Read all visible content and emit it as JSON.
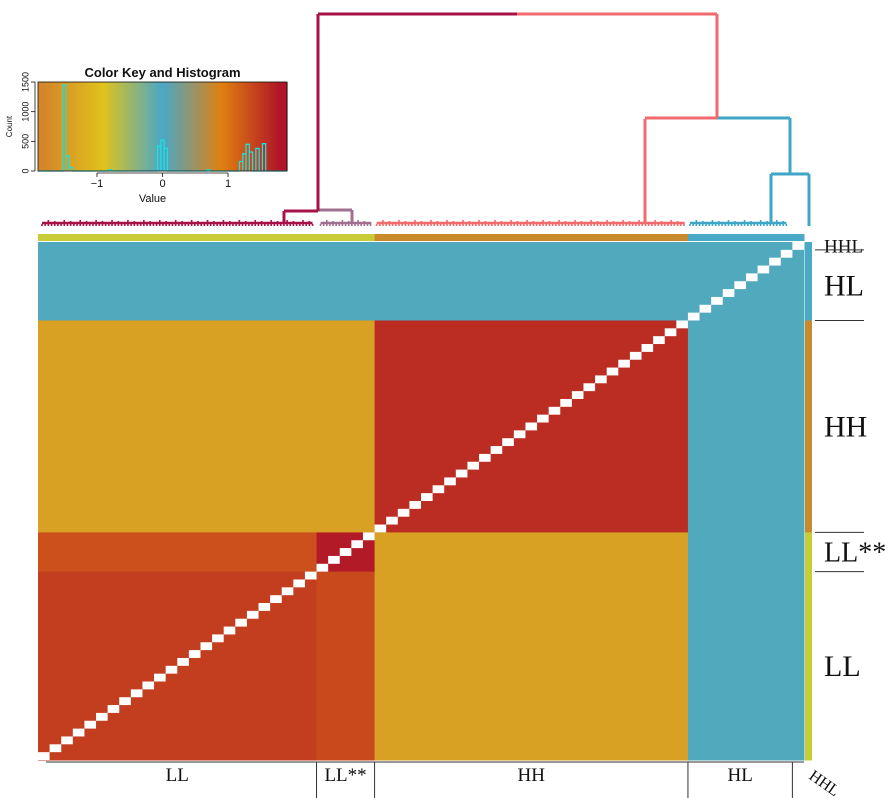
{
  "chart_data": {
    "type": "heatmap",
    "title": "",
    "clusters": [
      {
        "id": "LL",
        "label": "LL",
        "size": 24,
        "color": "#c8cc38"
      },
      {
        "id": "LLss",
        "label": "LL**",
        "size": 5,
        "color": "#c8cc38"
      },
      {
        "id": "HH",
        "label": "HH",
        "size": 27,
        "color": "#c98a2c"
      },
      {
        "id": "HL",
        "label": "HL",
        "size": 9,
        "color": "#4aa9c7"
      },
      {
        "id": "HHL",
        "label": "HHL",
        "size": 1,
        "color": "#4aa9c7"
      }
    ],
    "row_labels": [
      "HHL",
      "HL",
      "HH",
      "LL**",
      "LL"
    ],
    "col_labels": [
      "LL",
      "LL**",
      "HH",
      "HL",
      "HHL"
    ],
    "block_values": {
      "LL": {
        "LL": 1.45,
        "LLss": 1.35,
        "HH": -1.4,
        "HL": -0.05,
        "HHL": -0.05
      },
      "LLss": {
        "LL": 1.3,
        "LLss": 1.75,
        "HH": -1.4,
        "HL": -0.05,
        "HHL": -0.05
      },
      "HH": {
        "LL": -1.4,
        "LLss": -1.4,
        "HH": 1.6,
        "HL": -0.05,
        "HHL": -0.05
      },
      "HL": {
        "LL": -0.05,
        "LLss": -0.05,
        "HH": -0.05,
        "HL": -0.05,
        "HHL": -0.05
      },
      "HHL": {
        "LL": -0.05,
        "LLss": -0.05,
        "HH": -0.05,
        "HL": -0.05,
        "HHL": -0.05
      }
    },
    "color_key": {
      "title": "Color Key and Histogram",
      "xlabel": "Value",
      "ylabel": "Count",
      "xlim": [
        -1.9,
        1.9
      ],
      "ylim": [
        0,
        1500
      ],
      "x_ticks": [
        -1,
        0,
        1
      ],
      "x_tick_labels": [
        "−1",
        "0",
        "1"
      ],
      "y_ticks": [
        0,
        500,
        1000,
        1500
      ],
      "y_tick_labels": [
        "0",
        "500",
        "1000",
        "1500"
      ],
      "colors": [
        "#d4862a",
        "#e0c21c",
        "#49a8c8",
        "#e08010",
        "#b01428"
      ],
      "histogram_color": "#1ee0e0",
      "histogram": [
        {
          "x": -1.5,
          "count": 1450
        },
        {
          "x": -1.45,
          "count": 250
        },
        {
          "x": -1.4,
          "count": 60
        },
        {
          "x": -0.8,
          "count": 20
        },
        {
          "x": -0.05,
          "count": 420
        },
        {
          "x": 0.0,
          "count": 520
        },
        {
          "x": 0.05,
          "count": 380
        },
        {
          "x": 0.7,
          "count": 20
        },
        {
          "x": 1.2,
          "count": 160
        },
        {
          "x": 1.25,
          "count": 290
        },
        {
          "x": 1.3,
          "count": 450
        },
        {
          "x": 1.35,
          "count": 320
        },
        {
          "x": 1.45,
          "count": 380
        },
        {
          "x": 1.55,
          "count": 460
        }
      ]
    },
    "dendrogram": {
      "top_left_color": "#a8124a",
      "top_right_color": "#f26a6e",
      "hl_color": "#3fa6c6",
      "ll_color": "#a8124a",
      "llss_color": "#a07090",
      "hh_color": "#f26a6e"
    }
  }
}
